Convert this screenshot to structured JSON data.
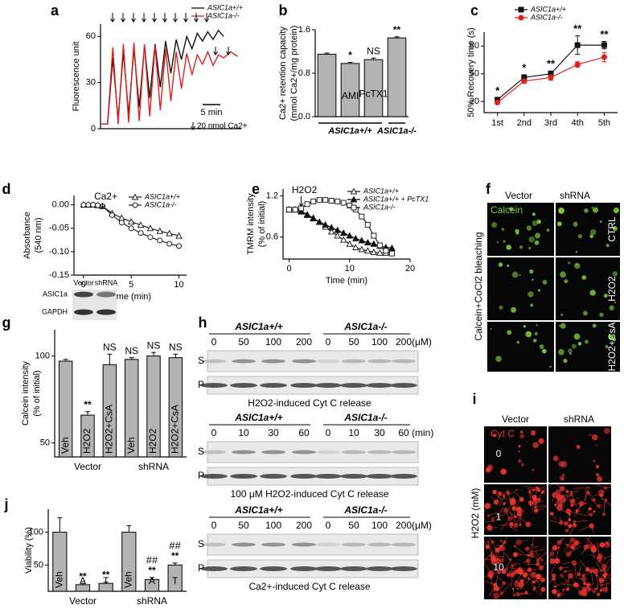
{
  "chart_data": [
    {
      "type": "line",
      "label": "a",
      "ylabel": "Fluorescence unit",
      "xlim": [
        0,
        40
      ],
      "ylim": [
        0,
        68
      ],
      "yticks": [
        0,
        30,
        60
      ],
      "series": [
        {
          "name": "ASIC1a+/+",
          "color": "#111111",
          "x": [
            0,
            2,
            3.5,
            5,
            6.5,
            8,
            9.5,
            11,
            12.5,
            14,
            15.5,
            17,
            18.5,
            20,
            21.5,
            23,
            24.5,
            26,
            27.5,
            29,
            30.5,
            32,
            33.5,
            35
          ],
          "values": [
            3,
            3,
            46,
            6,
            50,
            9,
            52,
            14,
            54,
            20,
            55,
            27,
            57,
            36,
            58,
            45,
            60,
            52,
            62,
            57,
            63,
            58,
            64,
            60
          ]
        },
        {
          "name": "ASIC1a-/-",
          "color": "#e0201b",
          "x": [
            0,
            2,
            3.5,
            5,
            6.5,
            8,
            9.5,
            11,
            12.5,
            14,
            15.5,
            17,
            18.5,
            20,
            21.5,
            23,
            24.5,
            26,
            27.5,
            29,
            30.5,
            32,
            33.5,
            35,
            37,
            39
          ],
          "values": [
            3,
            3,
            53,
            3,
            55,
            4,
            56,
            5,
            55,
            8,
            54,
            12,
            52,
            18,
            50,
            26,
            49,
            35,
            48,
            42,
            50,
            41,
            48,
            46,
            50,
            47
          ]
        }
      ],
      "annotations": [
        "5 min",
        "20 nmol Ca2+"
      ]
    },
    {
      "type": "bar",
      "label": "b",
      "ylabel": [
        "Ca2+ retention capacity",
        "(mmol Ca2+/mg protein)"
      ],
      "categories": [
        null,
        "AMI",
        "PcTX1",
        null
      ],
      "values": [
        1.15,
        0.98,
        1.05,
        1.45
      ],
      "errors": [
        0.02,
        0.02,
        0.03,
        0.02
      ],
      "color": "#b3b3b3",
      "ylim": [
        0,
        1.6
      ],
      "yticks": [
        {
          "value": 0,
          "label": "0.0"
        },
        {
          "value": 0.8,
          "label": "0.8"
        },
        {
          "value": 1.6,
          "label": "1.6"
        }
      ],
      "significance": [
        null,
        "*",
        "NS",
        "**"
      ],
      "groups": [
        "ASIC1a+/+",
        "ASIC1a-/-"
      ]
    },
    {
      "type": "line",
      "label": "c",
      "ylabel": "50% Recovery time (s)",
      "categories": [
        "1st",
        "2nd",
        "3rd",
        "4th",
        "5th"
      ],
      "ylim": [
        8,
        95
      ],
      "yticks": [
        20,
        50,
        80
      ],
      "series": [
        {
          "name": "ASIC1a+/+",
          "color": "#111111",
          "marker": "square",
          "filled": true,
          "values": [
            22,
            46,
            50,
            81,
            81
          ],
          "errors": [
            2,
            3,
            3,
            10,
            4
          ]
        },
        {
          "name": "ASIC1a-/-",
          "color": "#e0201b",
          "marker": "circle",
          "filled": true,
          "values": [
            19,
            42,
            46,
            60,
            68
          ],
          "errors": [
            2,
            2,
            3,
            3,
            5
          ]
        }
      ],
      "significance": [
        "*",
        "*",
        "**",
        "**",
        "**"
      ]
    },
    {
      "type": "line",
      "label": "d",
      "xlabel": "Time (min)",
      "ylabel": [
        "Absorbance",
        "(540 nm)"
      ],
      "xlim": [
        -1,
        10.8
      ],
      "xticks": [
        0,
        5,
        10
      ],
      "ylim": [
        -0.15,
        0.02
      ],
      "yticks": [
        {
          "value": -0.15,
          "label": "-0.15"
        },
        {
          "value": -0.1,
          "label": "-0.10"
        },
        {
          "value": -0.05,
          "label": "-0.05"
        },
        {
          "value": 0,
          "label": "0.00"
        }
      ],
      "series": [
        {
          "name": "ASIC1a+/+",
          "color": "#222222",
          "marker": "triangle",
          "filled": false,
          "x": [
            0,
            0.5,
            1,
            1.5,
            2,
            3,
            4,
            5,
            6,
            7,
            8,
            9,
            10
          ],
          "values": [
            0,
            0,
            0,
            -0.001,
            -0.003,
            -0.018,
            -0.028,
            -0.036,
            -0.043,
            -0.05,
            -0.056,
            -0.061,
            -0.066
          ]
        },
        {
          "name": "ASIC1a-/-",
          "color": "#222222",
          "marker": "circle",
          "filled": false,
          "x": [
            0,
            0.5,
            1,
            1.5,
            2,
            3,
            4,
            5,
            6,
            7,
            8,
            9,
            10
          ],
          "values": [
            0,
            0,
            0,
            -0.001,
            -0.003,
            -0.022,
            -0.038,
            -0.05,
            -0.06,
            -0.069,
            -0.076,
            -0.083,
            -0.088
          ]
        }
      ],
      "annotations": [
        "Ca2+"
      ]
    },
    {
      "type": "line",
      "label": "e",
      "xlabel": "Time (min)",
      "ylabel": [
        "TMRM intensity",
        "(% of initial)"
      ],
      "xlim": [
        -1,
        20
      ],
      "xticks": [
        0,
        10,
        20
      ],
      "ylim": [
        0.28,
        1.3
      ],
      "yticks": [
        0.6,
        1.2
      ],
      "series": [
        {
          "name": "ASIC1a+/+",
          "color": "#222222",
          "marker": "triangle",
          "filled": false,
          "x": [
            0,
            1,
            2,
            3,
            4,
            5,
            6,
            7,
            8,
            9,
            10,
            11,
            12,
            13,
            14,
            15,
            16,
            17
          ],
          "values": [
            1.0,
            1.0,
            0.98,
            0.93,
            0.88,
            0.82,
            0.75,
            0.68,
            0.62,
            0.56,
            0.5,
            0.45,
            0.42,
            0.4,
            0.38,
            0.37,
            0.37,
            0.38
          ]
        },
        {
          "name": "ASIC1a+/+ + PcTX1",
          "color": "#111111",
          "marker": "triangle",
          "filled": true,
          "x": [
            0,
            1,
            2,
            3,
            4,
            5,
            6,
            7,
            8,
            9,
            10,
            11,
            12,
            13,
            14,
            15,
            16,
            17
          ],
          "values": [
            1.0,
            1.0,
            0.97,
            0.92,
            0.87,
            0.82,
            0.78,
            0.74,
            0.7,
            0.66,
            0.62,
            0.58,
            0.55,
            0.52,
            0.5,
            0.47,
            0.45,
            0.44
          ]
        },
        {
          "name": "ASIC1a-/-",
          "color": "#222222",
          "marker": "square",
          "filled": false,
          "x": [
            0,
            1,
            2,
            3,
            4,
            5,
            6,
            7,
            8,
            9,
            10,
            11,
            12,
            13,
            14,
            15,
            16,
            17
          ],
          "values": [
            1.0,
            1.0,
            1.02,
            1.08,
            1.12,
            1.14,
            1.14,
            1.13,
            1.12,
            1.1,
            1.06,
            1.0,
            0.9,
            0.78,
            0.62,
            0.48,
            0.4,
            0.36
          ]
        }
      ],
      "annotations": [
        "H2O2"
      ]
    },
    {
      "type": "bar",
      "label": "g",
      "ylabel": [
        "Calcein intensity",
        "(% of initial)"
      ],
      "categories": [
        "Veh",
        "H2O2",
        "H2O2+CsA",
        "Veh",
        "H2O2",
        "H2O2+CsA"
      ],
      "values": [
        97,
        66,
        95,
        98,
        100,
        99
      ],
      "errors": [
        1,
        2,
        6,
        1,
        2,
        2
      ],
      "color": "#b3b3b3",
      "ylim": [
        42,
        115
      ],
      "yticks": [
        50,
        100
      ],
      "significance": [
        null,
        "**",
        "NS",
        "NS",
        "NS",
        "NS"
      ],
      "groups": [
        "Vector",
        "shRNA"
      ]
    },
    {
      "type": "bar",
      "label": "j",
      "ylabel": "Viability (%)",
      "categories": [
        "Veh",
        "A",
        "T",
        "Veh",
        "A",
        "T"
      ],
      "values": [
        100,
        20,
        22,
        100,
        28,
        50
      ],
      "errors": [
        22,
        2,
        2,
        10,
        3,
        3
      ],
      "color": "#b3b3b3",
      "ylim": [
        10,
        135
      ],
      "yticks": [
        50,
        100
      ],
      "significance": [
        null,
        "**",
        "**",
        null,
        "**",
        "**"
      ],
      "significance2": [
        null,
        null,
        null,
        null,
        "##",
        "##"
      ],
      "groups": [
        "Vector",
        "shRNA"
      ]
    }
  ],
  "panels": {
    "f": {
      "label": "f",
      "columns": [
        "Vector",
        "shRNA"
      ],
      "stain": "Calcein",
      "rows": [
        "CTRL",
        "H2O2",
        "H2O2+CsA"
      ],
      "side_label": "Calcein+CoCl2 bleaching"
    },
    "g_blot": {
      "columns": [
        "Vector",
        "shRNA"
      ],
      "rows": [
        "ASIC1a",
        "GAPDH"
      ]
    },
    "h": {
      "label": "h",
      "blots": [
        {
          "groups": [
            "ASIC1a+/+",
            "ASIC1a-/-"
          ],
          "doses": [
            "0",
            "50",
            "100",
            "200"
          ],
          "unit": "(μM)",
          "rows": [
            "S",
            "P"
          ],
          "caption": "H2O2-induced Cyt C release"
        },
        {
          "groups": [
            "ASIC1a+/+",
            "ASIC1a-/-"
          ],
          "doses": [
            "0",
            "10",
            "30",
            "60"
          ],
          "unit": "(min)",
          "rows": [
            "S",
            "P"
          ],
          "caption": "100 μM H2O2-induced Cyt C release"
        },
        {
          "groups": [
            "ASIC1a+/+",
            "ASIC1a-/-"
          ],
          "doses": [
            "0",
            "50",
            "100",
            "200"
          ],
          "unit": "(μM)",
          "rows": [
            "S",
            "P"
          ],
          "caption": "Ca2+-induced Cyt C release"
        }
      ]
    },
    "i": {
      "label": "i",
      "columns": [
        "Vector",
        "shRNA"
      ],
      "stain": "Cyt C",
      "rows": [
        "0",
        "1",
        "10"
      ],
      "side_label": "H2O2 (mM)"
    }
  }
}
